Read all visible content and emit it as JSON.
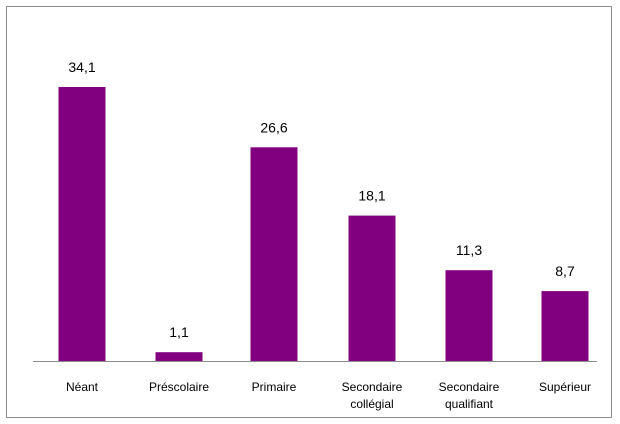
{
  "chart_data": {
    "type": "bar",
    "categories": [
      [
        "Néant"
      ],
      [
        "Préscolaire"
      ],
      [
        "Primaire"
      ],
      [
        "Secondaire",
        "collégial"
      ],
      [
        "Secondaire",
        "qualifiant"
      ],
      [
        "Supérieur"
      ]
    ],
    "values": [
      34.1,
      1.1,
      26.6,
      18.1,
      11.3,
      8.7
    ],
    "value_labels": [
      "34,1",
      "1,1",
      "26,6",
      "18,1",
      "11,3",
      "8,7"
    ],
    "title": "",
    "xlabel": "",
    "ylabel": "",
    "ylim": [
      0,
      34.1
    ],
    "grid": false,
    "legend": "none",
    "bar_color": "#800080",
    "axis_color": "#8c8c8c"
  }
}
